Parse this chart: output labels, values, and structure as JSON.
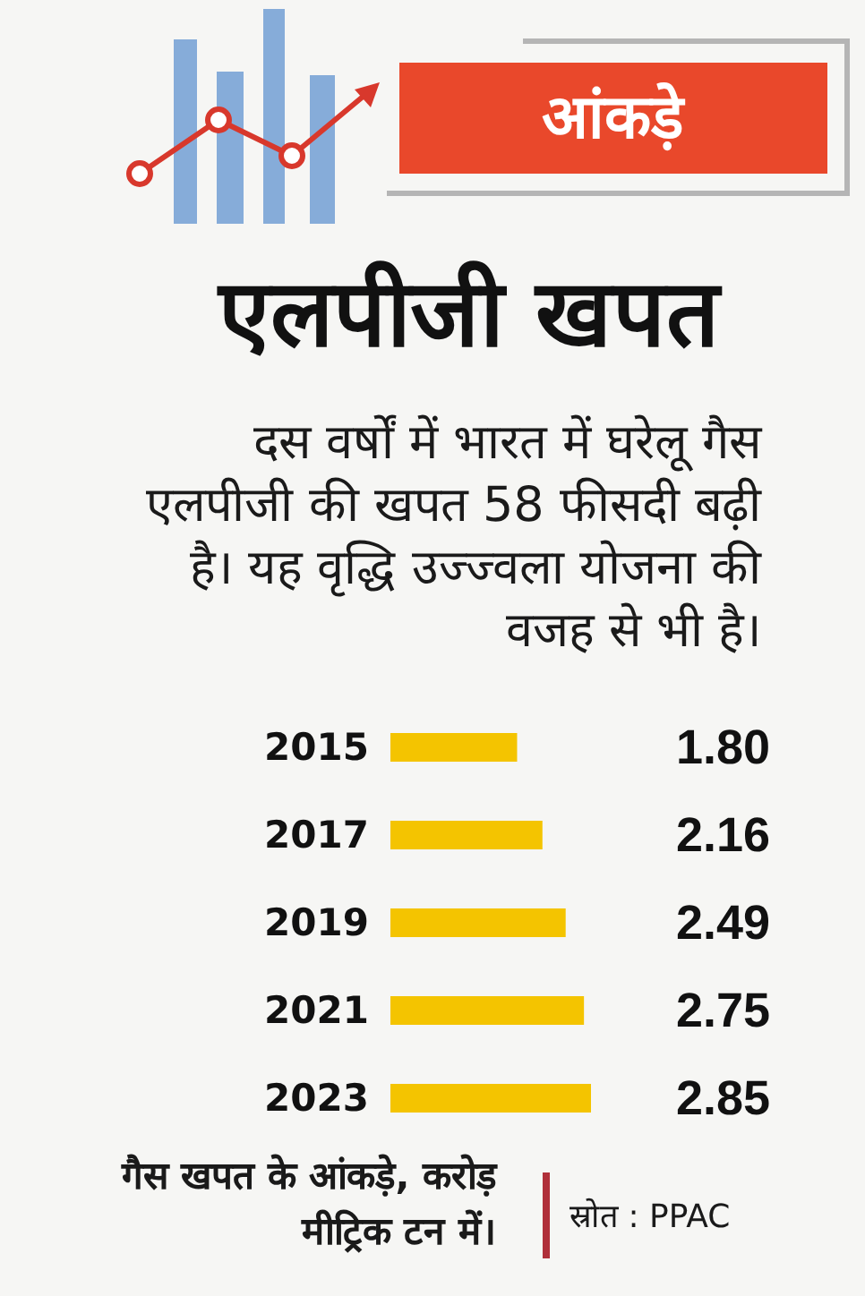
{
  "chart_data": {
    "type": "bar",
    "orientation": "horizontal",
    "title": "एलपीजी खपत",
    "subtitle": "दस वर्षों में भारत में घरेलू गैस एलपीजी की खपत 58 फीसदी बढ़ी है। यह वृद्धि उज्ज्वला योजना की वजह से भी है।",
    "annotations": [
      "आंकड़े",
      "गैस खपत के आंकड़े, करोड़ मीट्रिक टन में।",
      "स्रोत : PPAC"
    ],
    "categories": [
      "2015",
      "2017",
      "2019",
      "2021",
      "2023"
    ],
    "values": [
      1.8,
      2.16,
      2.49,
      2.75,
      2.85
    ],
    "value_labels": [
      "1.80",
      "2.16",
      "2.49",
      "2.75",
      "2.85"
    ],
    "color": "#f4c400",
    "tick_labels": "y"
  }
}
